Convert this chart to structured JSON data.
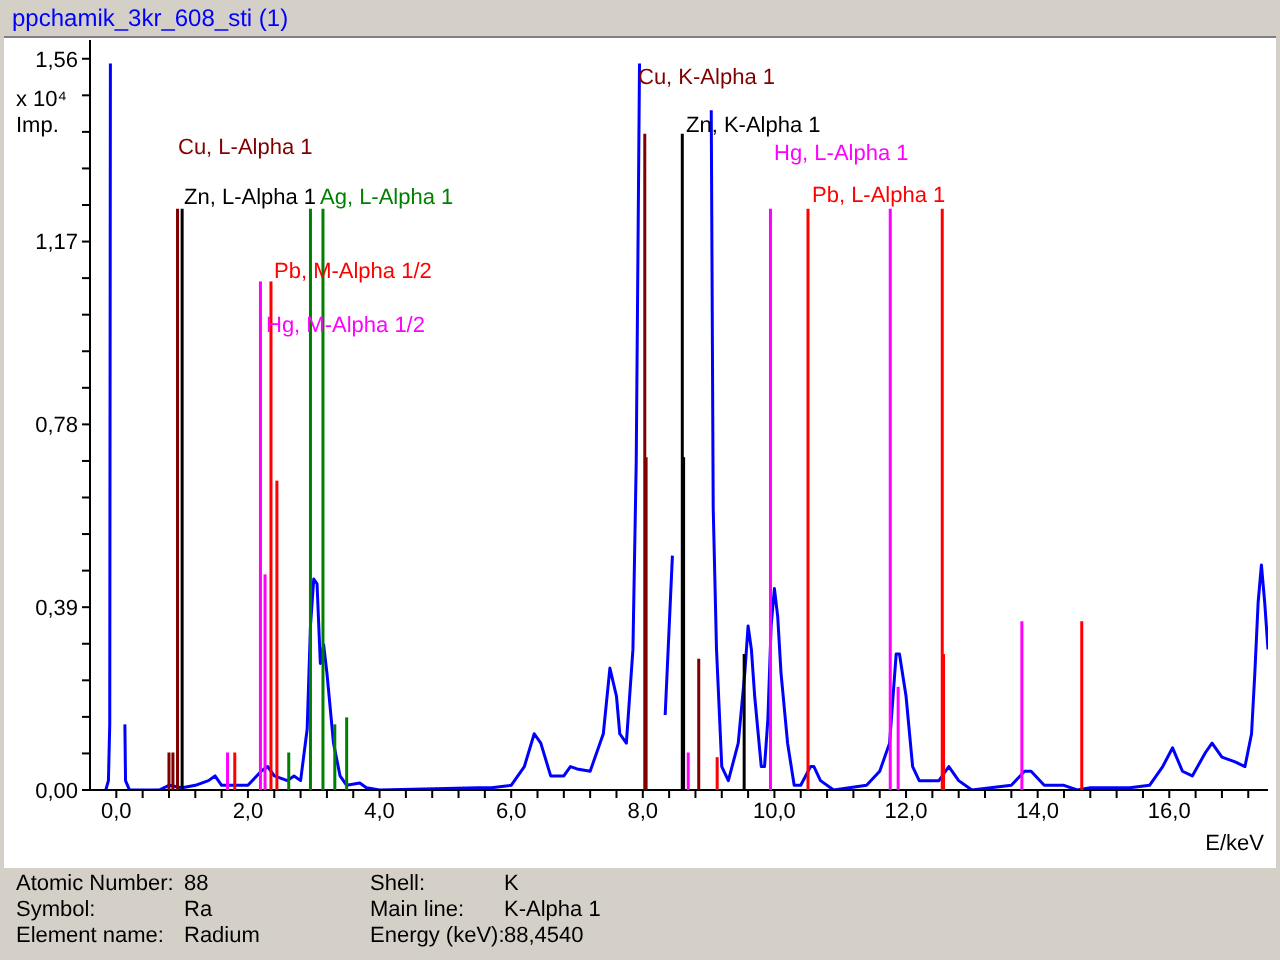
{
  "chart_data": {
    "type": "line",
    "title": "ppchamik_3kr_608_sti (1)",
    "xlabel": "E/keV",
    "ylabel": "x 10⁴ Imp.",
    "xlim": [
      -0.4,
      17.5
    ],
    "xticks": [
      {
        "value": 0,
        "label": "0,0"
      },
      {
        "value": 0.4,
        "label": null
      },
      {
        "value": 0.8,
        "label": null
      },
      {
        "value": 1.2,
        "label": null
      },
      {
        "value": 1.6,
        "label": null
      },
      {
        "value": 2,
        "label": "2,0"
      },
      {
        "value": 2.4,
        "label": null
      },
      {
        "value": 2.8,
        "label": null
      },
      {
        "value": 3.2,
        "label": null
      },
      {
        "value": 3.6,
        "label": null
      },
      {
        "value": 4,
        "label": "4,0"
      },
      {
        "value": 4.4,
        "label": null
      },
      {
        "value": 4.8,
        "label": null
      },
      {
        "value": 5.2,
        "label": null
      },
      {
        "value": 5.6,
        "label": null
      },
      {
        "value": 6,
        "label": "6,0"
      },
      {
        "value": 6.4,
        "label": null
      },
      {
        "value": 6.8,
        "label": null
      },
      {
        "value": 7.2,
        "label": null
      },
      {
        "value": 7.6,
        "label": null
      },
      {
        "value": 8,
        "label": "8,0"
      },
      {
        "value": 8.4,
        "label": null
      },
      {
        "value": 8.8,
        "label": null
      },
      {
        "value": 9.2,
        "label": null
      },
      {
        "value": 9.6,
        "label": null
      },
      {
        "value": 10,
        "label": "10,0"
      },
      {
        "value": 10.4,
        "label": null
      },
      {
        "value": 10.8,
        "label": null
      },
      {
        "value": 11.2,
        "label": null
      },
      {
        "value": 11.6,
        "label": null
      },
      {
        "value": 12,
        "label": "12,0"
      },
      {
        "value": 12.4,
        "label": null
      },
      {
        "value": 12.8,
        "label": null
      },
      {
        "value": 13.2,
        "label": null
      },
      {
        "value": 13.6,
        "label": null
      },
      {
        "value": 14,
        "label": "14,0"
      },
      {
        "value": 14.4,
        "label": null
      },
      {
        "value": 14.8,
        "label": null
      },
      {
        "value": 15.2,
        "label": null
      },
      {
        "value": 15.6,
        "label": null
      },
      {
        "value": 16,
        "label": "16,0"
      },
      {
        "value": 16.4,
        "label": null
      },
      {
        "value": 16.8,
        "label": null
      },
      {
        "value": 17.2,
        "label": null
      }
    ],
    "ylim": [
      0,
      1.6
    ],
    "yticks": [
      {
        "value": 0,
        "label": "0,00"
      },
      {
        "value": 0.078,
        "label": null
      },
      {
        "value": 0.156,
        "label": null
      },
      {
        "value": 0.234,
        "label": null
      },
      {
        "value": 0.312,
        "label": null
      },
      {
        "value": 0.39,
        "label": "0,39"
      },
      {
        "value": 0.468,
        "label": null
      },
      {
        "value": 0.546,
        "label": null
      },
      {
        "value": 0.624,
        "label": null
      },
      {
        "value": 0.702,
        "label": null
      },
      {
        "value": 0.78,
        "label": "0,78"
      },
      {
        "value": 0.858,
        "label": null
      },
      {
        "value": 0.936,
        "label": null
      },
      {
        "value": 1.014,
        "label": null
      },
      {
        "value": 1.092,
        "label": null
      },
      {
        "value": 1.17,
        "label": "1,17"
      },
      {
        "value": 1.248,
        "label": null
      },
      {
        "value": 1.326,
        "label": null
      },
      {
        "value": 1.404,
        "label": null
      },
      {
        "value": 1.482,
        "label": null
      },
      {
        "value": 1.56,
        "label": "1,56"
      }
    ],
    "series": [
      {
        "type": "bar",
        "color": "#800000",
        "x": [
          0.8,
          0.86,
          0.93,
          8.03,
          8.05,
          8.85
        ],
        "values": [
          0.08,
          0.08,
          1.24,
          1.4,
          0.71,
          0.28
        ]
      },
      {
        "type": "bar",
        "color": "#000000",
        "x": [
          1.0,
          8.6,
          8.62,
          9.54
        ],
        "values": [
          1.24,
          1.4,
          0.71,
          0.29
        ]
      },
      {
        "type": "bar",
        "color": "#008000",
        "x": [
          2.62,
          2.95,
          3.14,
          3.32,
          3.5
        ],
        "values": [
          0.08,
          1.24,
          1.24,
          0.14,
          0.155
        ]
      },
      {
        "type": "bar",
        "color": "#ff00ff",
        "x": [
          1.69,
          2.19,
          2.26,
          8.69,
          9.94,
          11.76,
          11.88,
          13.76
        ],
        "values": [
          0.08,
          1.085,
          0.46,
          0.08,
          1.24,
          1.24,
          0.22,
          0.36
        ]
      },
      {
        "type": "bar",
        "color": "#ff0000",
        "x": [
          1.8,
          2.35,
          2.44,
          9.13,
          10.51,
          12.55,
          12.57,
          14.67
        ],
        "values": [
          0.08,
          1.085,
          0.66,
          0.07,
          1.24,
          1.24,
          0.29,
          0.36
        ]
      },
      {
        "color": "#0000ff",
        "x": [
          -0.16,
          -0.12,
          -0.1,
          -0.09,
          0.12,
          0.13,
          0.14,
          0.2,
          0.65,
          0.8,
          1.0,
          1.2,
          1.4,
          1.5,
          1.6,
          2.0,
          2.2,
          2.3,
          2.4,
          2.6,
          2.7,
          2.8,
          2.9,
          2.95,
          3.0,
          3.05,
          3.1,
          3.15,
          3.2,
          3.3,
          3.4,
          3.5,
          3.7,
          3.8,
          4.0,
          5.5,
          5.7,
          6.0,
          6.2,
          6.35,
          6.45,
          6.6,
          6.8,
          6.9,
          7.0,
          7.2,
          7.4,
          7.5,
          7.6,
          7.65,
          7.75,
          7.85,
          7.9,
          7.95,
          8.26,
          8.34,
          8.45,
          8.47,
          9.04,
          9.07,
          9.12,
          9.2,
          9.3,
          9.45,
          9.55,
          9.6,
          9.65,
          9.7,
          9.8,
          9.85,
          9.9,
          9.95,
          10.0,
          10.05,
          10.1,
          10.2,
          10.3,
          10.4,
          10.55,
          10.6,
          10.7,
          10.9,
          11.4,
          11.6,
          11.75,
          11.85,
          11.9,
          12.0,
          12.1,
          12.2,
          12.5,
          12.6,
          12.65,
          12.8,
          13.0,
          13.6,
          13.8,
          13.9,
          14.1,
          14.4,
          14.6,
          14.8,
          15.4,
          15.7,
          15.9,
          16.05,
          16.2,
          16.35,
          16.55,
          16.65,
          16.8,
          17.0,
          17.15,
          17.25,
          17.3,
          17.35,
          17.4,
          17.45,
          17.5
        ],
        "values": [
          0,
          0.02,
          0.14,
          1.55,
          null,
          0.14,
          0.02,
          0,
          0,
          0.01,
          0.005,
          0.01,
          0.02,
          0.03,
          0.01,
          0.01,
          0.04,
          0.05,
          0.03,
          0.02,
          0.03,
          0.02,
          0.13,
          0.35,
          0.45,
          0.44,
          0.27,
          0.31,
          0.25,
          0.1,
          0.03,
          0.01,
          0.015,
          0.005,
          0,
          0.005,
          0.005,
          0.01,
          0.05,
          0.12,
          0.1,
          0.03,
          0.03,
          0.05,
          0.045,
          0.04,
          0.12,
          0.26,
          0.2,
          0.12,
          0.1,
          0.3,
          0.7,
          1.55,
          null,
          0.16,
          0.5,
          null,
          1.45,
          0.6,
          0.3,
          0.05,
          0.02,
          0.1,
          0.25,
          0.35,
          0.3,
          0.2,
          0.05,
          0.05,
          0.15,
          0.35,
          0.43,
          0.37,
          0.25,
          0.1,
          0.01,
          0.01,
          0.05,
          0.05,
          0.02,
          0,
          0.01,
          0.04,
          0.1,
          0.29,
          0.29,
          0.2,
          0.05,
          0.02,
          0.02,
          0.04,
          0.05,
          0.02,
          0,
          0.01,
          0.04,
          0.04,
          0.01,
          0.01,
          0,
          0.005,
          0.005,
          0.01,
          0.05,
          0.09,
          0.04,
          0.03,
          0.08,
          0.1,
          0.07,
          0.06,
          0.05,
          0.12,
          0.25,
          0.4,
          0.48,
          0.4,
          0.3
        ]
      }
    ],
    "annotations": [
      "Cu, L-Alpha 1",
      "Zn, L-Alpha 1",
      "Ag, L-Alpha 1",
      "Pb, M-Alpha 1/2",
      "Hg, M-Alpha 1/2",
      "Cu, K-Alpha 1",
      "Zn, K-Alpha 1",
      "Hg, L-Alpha 1",
      "Pb, L-Alpha 1",
      "Atomic Number:",
      "88",
      "Shell:",
      "K",
      "Symbol:",
      "Ra",
      "Main line:",
      "K-Alpha 1",
      "Element name:",
      "Radium",
      "Energy (keV):",
      "88,4540"
    ]
  }
}
